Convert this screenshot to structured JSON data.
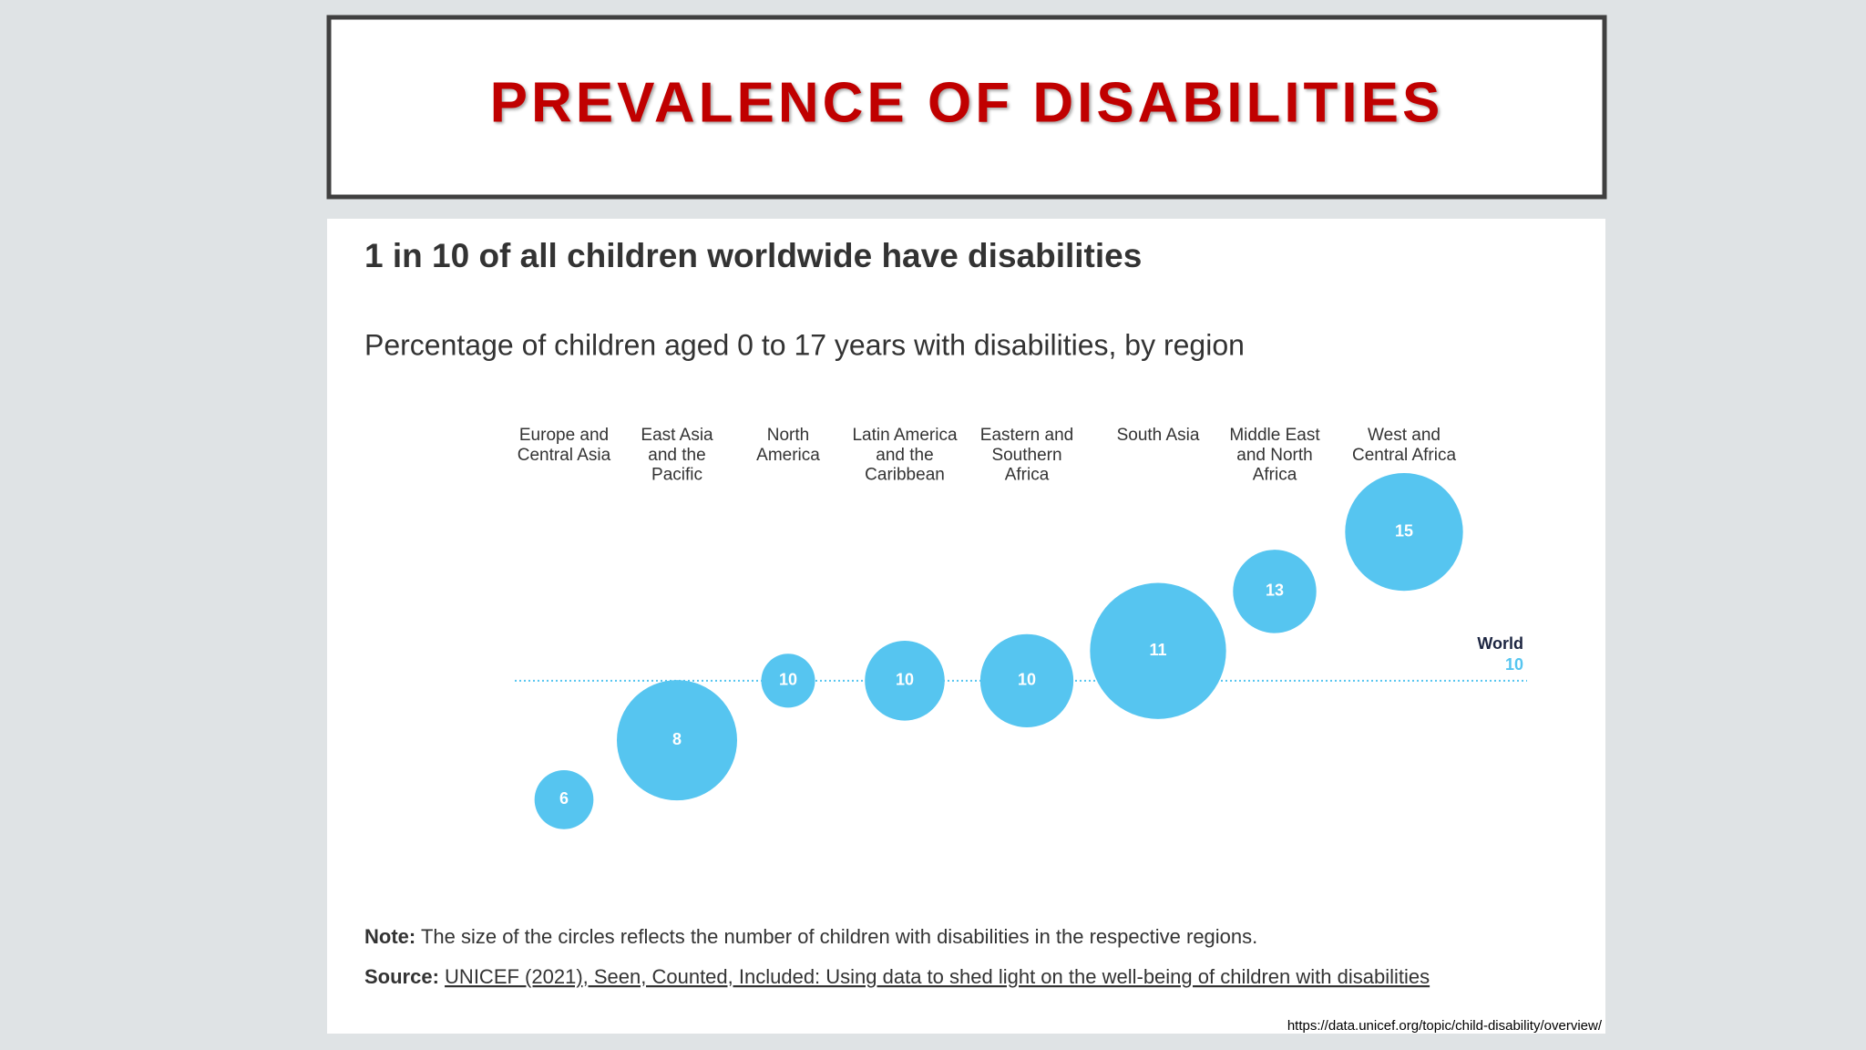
{
  "slide_title": "PREVALENCE OF DISABILITIES",
  "chart_data": {
    "type": "bubble",
    "title": "1 in 10 of all children worldwide have disabilities",
    "subtitle": "Percentage of children aged 0 to 17 years with disabilities, by region",
    "categories": [
      "Europe and\nCentral Asia",
      "East Asia\nand the\nPacific",
      "North\nAmerica",
      "Latin America\nand the\nCaribbean",
      "Eastern and\nSouthern\nAfrica",
      "South Asia",
      "Middle East\nand North\nAfrica",
      "West and\nCentral Africa"
    ],
    "values": [
      6,
      8,
      10,
      10,
      10,
      11,
      13,
      15
    ],
    "sizes": [
      6,
      25,
      5,
      11,
      15,
      32,
      12,
      24
    ],
    "color": "#56c5f0",
    "ylim": [
      5,
      16
    ],
    "reference": {
      "label": "World",
      "value": 10
    },
    "note": {
      "label": "Note:",
      "text": "The size of the circles reflects the number of children with disabilities in the respective regions."
    },
    "source": {
      "label": "Source:",
      "text": "UNICEF (2021), Seen, Counted, Included: Using data to shed light on the well-being of children with disabilities"
    }
  },
  "url": "https://data.unicef.org/topic/child-disability/overview/"
}
